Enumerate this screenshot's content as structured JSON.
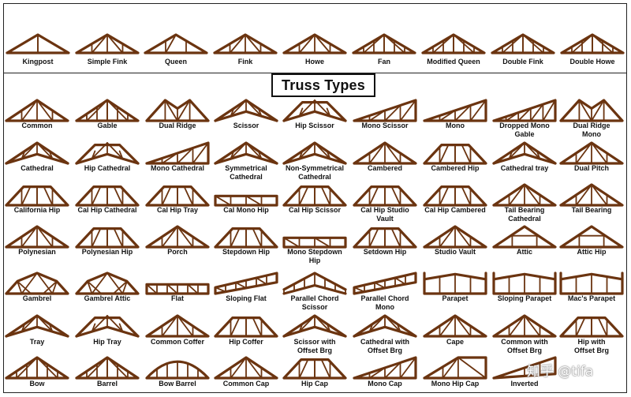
{
  "title": "Truss Types",
  "watermark": "知乎 @tifa",
  "top_row": [
    {
      "label": "Kingpost",
      "shape": "tri",
      "panels": 2
    },
    {
      "label": "Simple Fink",
      "shape": "tri",
      "panels": 4
    },
    {
      "label": "Queen",
      "shape": "tri",
      "panels": 3
    },
    {
      "label": "Fink",
      "shape": "tri",
      "panels": 4
    },
    {
      "label": "Howe",
      "shape": "tri",
      "panels": 4
    },
    {
      "label": "Fan",
      "shape": "tri",
      "panels": 6
    },
    {
      "label": "Modified Queen",
      "shape": "tri",
      "panels": 6
    },
    {
      "label": "Double Fink",
      "shape": "tri",
      "panels": 6
    },
    {
      "label": "Double Howe",
      "shape": "tri",
      "panels": 6
    }
  ],
  "grid": [
    [
      {
        "label": "Common",
        "shape": "tri",
        "panels": 4
      },
      {
        "label": "Gable",
        "shape": "tri",
        "panels": 6
      },
      {
        "label": "Dual Ridge",
        "shape": "dual",
        "panels": 4
      },
      {
        "label": "Scissor",
        "shape": "scissor",
        "panels": 4
      },
      {
        "label": "Hip Scissor",
        "shape": "hipscissor",
        "panels": 4
      },
      {
        "label": "Mono Scissor",
        "shape": "mono",
        "panels": 4
      },
      {
        "label": "Mono",
        "shape": "mono",
        "panels": 4
      },
      {
        "label": "Dropped Mono",
        "label2": "Gable",
        "shape": "mono",
        "panels": 5
      },
      {
        "label": "Dual Ridge",
        "label2": "Mono",
        "shape": "dual",
        "panels": 4
      }
    ],
    [
      {
        "label": "Cathedral",
        "shape": "scissor",
        "panels": 4
      },
      {
        "label": "Hip Cathedral",
        "shape": "hipscissor",
        "panels": 4
      },
      {
        "label": "Mono Cathedral",
        "shape": "mono",
        "panels": 4
      },
      {
        "label": "Symmetrical",
        "label2": "Cathedral",
        "shape": "scissor",
        "panels": 4
      },
      {
        "label": "Non-Symmetrical",
        "label2": "Cathedral",
        "shape": "scissor",
        "panels": 4
      },
      {
        "label": "Cambered",
        "shape": "tri",
        "panels": 4
      },
      {
        "label": "Cambered Hip",
        "shape": "hip",
        "panels": 4
      },
      {
        "label": "Cathedral tray",
        "shape": "scissor",
        "panels": 4
      },
      {
        "label": "Dual Pitch",
        "shape": "tri",
        "panels": 4
      }
    ],
    [
      {
        "label": "California Hip",
        "shape": "hip",
        "panels": 4
      },
      {
        "label": "Cal Hip Cathedral",
        "shape": "hip",
        "panels": 4
      },
      {
        "label": "Cal Hip Tray",
        "shape": "hip",
        "panels": 4
      },
      {
        "label": "Cal Mono Hip",
        "shape": "flat",
        "panels": 4
      },
      {
        "label": "Cal Hip Scissor",
        "shape": "hip",
        "panels": 4
      },
      {
        "label": "Cal Hip Studio",
        "label2": "Vault",
        "shape": "hip",
        "panels": 4
      },
      {
        "label": "Cal Hip Cambered",
        "shape": "hip",
        "panels": 4
      },
      {
        "label": "Tail Bearing",
        "label2": "Cathedral",
        "shape": "tri",
        "panels": 4
      },
      {
        "label": "Tail Bearing",
        "shape": "tri",
        "panels": 4
      }
    ],
    [
      {
        "label": "Polynesian",
        "shape": "tri",
        "panels": 4
      },
      {
        "label": "Polynesian Hip",
        "shape": "hip",
        "panels": 4
      },
      {
        "label": "Porch",
        "shape": "tri",
        "panels": 4
      },
      {
        "label": "Stepdown Hip",
        "shape": "hip",
        "panels": 4
      },
      {
        "label": "Mono Stepdown",
        "label2": "Hip",
        "shape": "flat",
        "panels": 4
      },
      {
        "label": "Setdown Hip",
        "shape": "hip",
        "panels": 4
      },
      {
        "label": "Studio Vault",
        "shape": "tri",
        "panels": 4
      },
      {
        "label": "Attic",
        "shape": "attic",
        "panels": 4
      },
      {
        "label": "Attic Hip",
        "shape": "attic",
        "panels": 4
      }
    ],
    [
      {
        "label": "Gambrel",
        "shape": "gambrel",
        "panels": 4
      },
      {
        "label": "Gambrel Attic",
        "shape": "gambrel",
        "panels": 4
      },
      {
        "label": "Flat",
        "shape": "flat",
        "panels": 6
      },
      {
        "label": "Sloping Flat",
        "shape": "slopeflat",
        "panels": 6
      },
      {
        "label": "Parallel Chord",
        "label2": "Scissor",
        "shape": "pscissor",
        "panels": 6
      },
      {
        "label": "Parallel Chord",
        "label2": "Mono",
        "shape": "slopeflat",
        "panels": 6
      },
      {
        "label": "Parapet",
        "shape": "parapet",
        "panels": 4
      },
      {
        "label": "Sloping Parapet",
        "shape": "parapet",
        "panels": 4
      },
      {
        "label": "Mac's Parapet",
        "shape": "parapet",
        "panels": 4
      }
    ],
    [
      {
        "label": "Tray",
        "shape": "scissor",
        "panels": 4
      },
      {
        "label": "Hip Tray",
        "shape": "hipscissor",
        "panels": 4
      },
      {
        "label": "Common Coffer",
        "shape": "tri",
        "panels": 4
      },
      {
        "label": "Hip Coffer",
        "shape": "hip",
        "panels": 4
      },
      {
        "label": "Scissor with",
        "label2": "Offset Brg",
        "shape": "scissor",
        "panels": 4
      },
      {
        "label": "Cathedral with",
        "label2": "Offset Brg",
        "shape": "scissor",
        "panels": 4
      },
      {
        "label": "Cape",
        "shape": "tri",
        "panels": 4
      },
      {
        "label": "Common with",
        "label2": "Offset Brg",
        "shape": "tri",
        "panels": 4
      },
      {
        "label": "Hip with",
        "label2": "Offset Brg",
        "shape": "hip",
        "panels": 4
      }
    ],
    [
      {
        "label": "Bow",
        "shape": "tri",
        "panels": 6
      },
      {
        "label": "Barrel",
        "shape": "tri",
        "panels": 6
      },
      {
        "label": "Bow Barrel",
        "shape": "bow",
        "panels": 6
      },
      {
        "label": "Common Cap",
        "shape": "tri",
        "panels": 4
      },
      {
        "label": "Hip Cap",
        "shape": "hip",
        "panels": 4
      },
      {
        "label": "Mono Cap",
        "shape": "mono",
        "panels": 4
      },
      {
        "label": "Mono Hip Cap",
        "shape": "monohip",
        "panels": 4
      },
      {
        "label": "Inverted",
        "shape": "inverted",
        "panels": 4
      }
    ]
  ],
  "colors": {
    "truss": "#6b3410",
    "text": "#111111",
    "border": "#222222"
  }
}
